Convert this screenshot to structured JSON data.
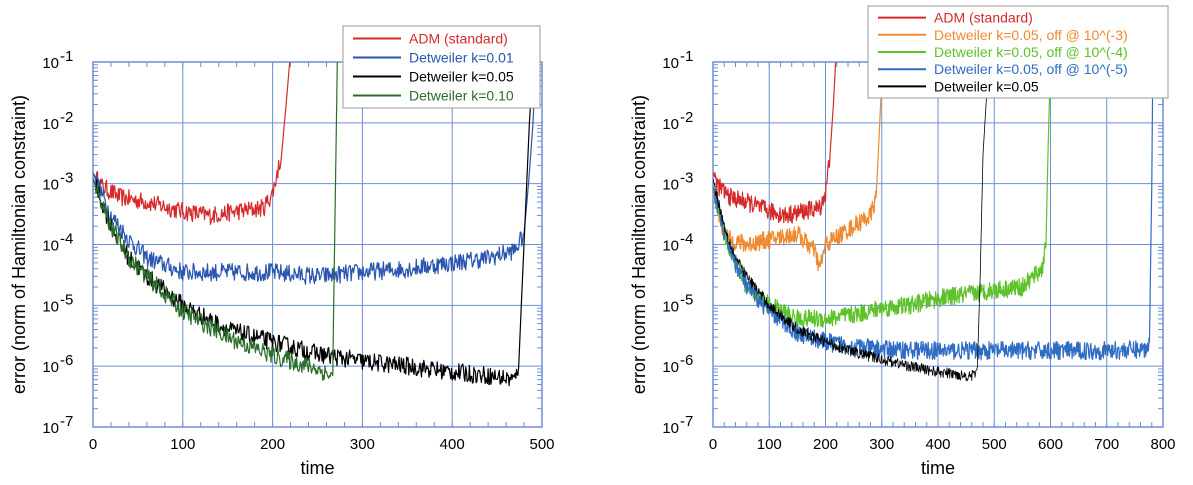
{
  "chart_data": [
    {
      "type": "line",
      "title": "",
      "xlabel": "time",
      "ylabel": "error (norm of Hamiltonian constraint)",
      "xlim": [
        0,
        500
      ],
      "ylim": [
        1e-07,
        0.1
      ],
      "yscale": "log",
      "grid": true,
      "legend_position": "top-right",
      "xticks": [
        "0",
        "100",
        "200",
        "300",
        "400",
        "500"
      ],
      "yticks": [
        {
          "base": "10",
          "exp": "-7"
        },
        {
          "base": "10",
          "exp": "-6"
        },
        {
          "base": "10",
          "exp": "-5"
        },
        {
          "base": "10",
          "exp": "-4"
        },
        {
          "base": "10",
          "exp": "-3"
        },
        {
          "base": "10",
          "exp": "-2"
        },
        {
          "base": "10",
          "exp": "-1"
        }
      ],
      "series": [
        {
          "name": "ADM (standard)",
          "color": "#d62a2a",
          "x": [
            0,
            10,
            30,
            60,
            100,
            130,
            160,
            190,
            200,
            210,
            215,
            219
          ],
          "y": [
            0.0015,
            0.0009,
            0.0006,
            0.0005,
            0.00035,
            0.0003,
            0.00035,
            0.0004,
            0.0007,
            0.003,
            0.02,
            0.1
          ]
        },
        {
          "name": "Detweiler k=0.01",
          "color": "#2a55b0",
          "x": [
            0,
            20,
            40,
            60,
            100,
            150,
            200,
            250,
            300,
            350,
            400,
            440,
            470,
            480,
            485,
            490,
            493
          ],
          "y": [
            0.0015,
            0.0003,
            0.00012,
            6e-05,
            3.5e-05,
            3.5e-05,
            3.5e-05,
            3e-05,
            3.5e-05,
            4e-05,
            5e-05,
            6e-05,
            8e-05,
            0.00015,
            0.001,
            0.01,
            0.1
          ]
        },
        {
          "name": "Detweiler k=0.05",
          "color": "#000000",
          "x": [
            0,
            20,
            40,
            60,
            100,
            150,
            200,
            250,
            300,
            350,
            400,
            440,
            470,
            474,
            480,
            486,
            490
          ],
          "y": [
            0.0012,
            0.0002,
            6e-05,
            3e-05,
            1e-05,
            4e-06,
            2.5e-06,
            1.6e-06,
            1.2e-06,
            1e-06,
            8e-07,
            7e-07,
            6e-07,
            1e-06,
            0.0001,
            0.01,
            0.1
          ]
        },
        {
          "name": "Detweiler k=0.10",
          "color": "#2a6e2a",
          "x": [
            0,
            20,
            40,
            60,
            100,
            150,
            200,
            250,
            265,
            267,
            268,
            272
          ],
          "y": [
            0.0012,
            0.0002,
            6e-05,
            3e-05,
            8e-06,
            3e-06,
            1.5e-06,
            9e-07,
            7e-07,
            7e-07,
            1e-05,
            0.1
          ]
        }
      ]
    },
    {
      "type": "line",
      "title": "",
      "xlabel": "time",
      "ylabel": "error (norm of Hamiltonian constraint)",
      "xlim": [
        0,
        800
      ],
      "ylim": [
        1e-07,
        0.1
      ],
      "yscale": "log",
      "grid": true,
      "legend_position": "top-right",
      "xticks": [
        "0",
        "100",
        "200",
        "300",
        "400",
        "500",
        "600",
        "700",
        "800"
      ],
      "yticks": [
        {
          "base": "10",
          "exp": "-7"
        },
        {
          "base": "10",
          "exp": "-6"
        },
        {
          "base": "10",
          "exp": "-5"
        },
        {
          "base": "10",
          "exp": "-4"
        },
        {
          "base": "10",
          "exp": "-3"
        },
        {
          "base": "10",
          "exp": "-2"
        },
        {
          "base": "10",
          "exp": "-1"
        }
      ],
      "series": [
        {
          "name": "ADM (standard)",
          "color": "#d62a2a",
          "x": [
            0,
            10,
            30,
            60,
            100,
            130,
            160,
            190,
            200,
            208,
            214,
            218
          ],
          "y": [
            0.0015,
            0.0009,
            0.0006,
            0.0005,
            0.00035,
            0.0003,
            0.00035,
            0.0004,
            0.0007,
            0.003,
            0.02,
            0.1
          ]
        },
        {
          "name": "Detweiler k=0.05, off @ 10^(-3)",
          "color": "#f08a30",
          "x": [
            0,
            15,
            30,
            60,
            100,
            150,
            180,
            190,
            200,
            250,
            280,
            290,
            295,
            300,
            305
          ],
          "y": [
            0.0008,
            0.0002,
            0.00012,
            0.0001,
            0.00012,
            0.00015,
            8e-05,
            4e-05,
            0.0001,
            0.0002,
            0.0003,
            0.0006,
            0.005,
            0.05,
            0.1
          ]
        },
        {
          "name": "Detweiler k=0.05, off @ 10^(-4)",
          "color": "#5ec22a",
          "x": [
            0,
            20,
            40,
            60,
            100,
            150,
            200,
            250,
            300,
            350,
            400,
            450,
            500,
            550,
            585,
            592,
            596,
            600
          ],
          "y": [
            0.0009,
            0.00015,
            5e-05,
            2e-05,
            1e-05,
            6e-06,
            6e-06,
            7e-06,
            9e-06,
            1e-05,
            1.3e-05,
            1.5e-05,
            1.8e-05,
            2e-05,
            4e-05,
            0.0001,
            0.005,
            0.1
          ]
        },
        {
          "name": "Detweiler k=0.05, off @ 10^(-5)",
          "color": "#2f6cc4",
          "x": [
            0,
            20,
            40,
            60,
            100,
            150,
            200,
            250,
            300,
            400,
            500,
            600,
            700,
            770,
            776,
            780,
            782
          ],
          "y": [
            0.0009,
            0.00015,
            5e-05,
            2e-05,
            8e-06,
            3.5e-06,
            2.5e-06,
            2.1e-06,
            1.9e-06,
            1.8e-06,
            1.8e-06,
            1.8e-06,
            1.8e-06,
            1.9e-06,
            2.5e-06,
            0.001,
            0.1
          ]
        },
        {
          "name": "Detweiler k=0.05",
          "color": "#000000",
          "x": [
            0,
            20,
            40,
            60,
            100,
            150,
            200,
            250,
            300,
            350,
            400,
            450,
            465,
            470,
            475,
            480,
            490
          ],
          "y": [
            0.0012,
            0.0002,
            6e-05,
            3e-05,
            1e-05,
            4e-06,
            2.5e-06,
            1.7e-06,
            1.3e-06,
            1e-06,
            8e-07,
            7e-07,
            7e-07,
            1e-06,
            3e-05,
            0.003,
            0.1
          ]
        }
      ]
    }
  ]
}
